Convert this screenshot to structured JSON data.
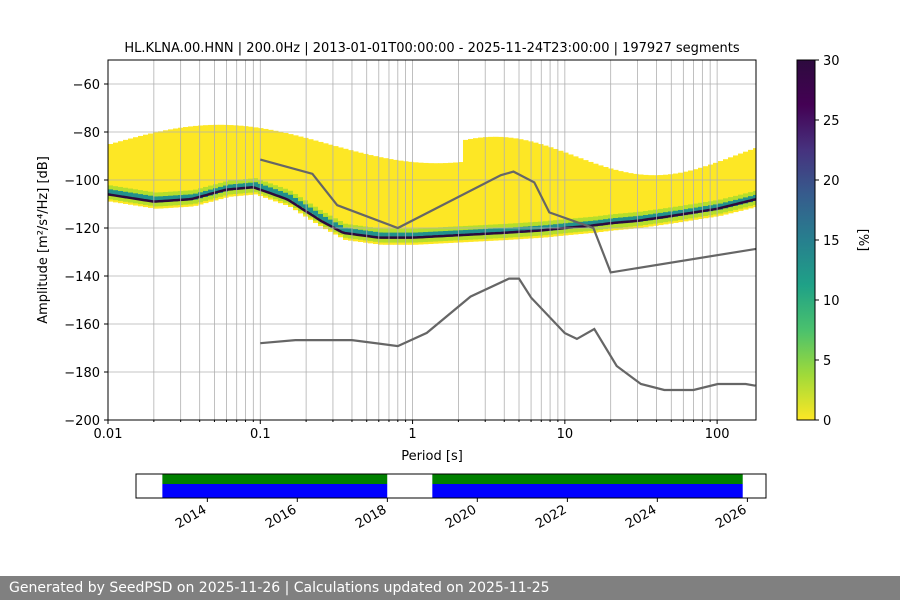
{
  "footer": {
    "text": "Generated by SeedPSD on 2025-11-26 | Calculations updated on 2025-11-25"
  },
  "chart_data": [
    {
      "type": "heatmap",
      "title": "HL.KLNA.00.HNN | 200.0Hz | 2013-01-01T00:00:00 - 2025-11-24T23:00:00 | 197927 segments",
      "xlabel": "Period [s]",
      "ylabel": "Amplitude [m²/s⁴/Hz] [dB]",
      "x_scale": "log",
      "xlim": [
        0.01,
        180
      ],
      "ylim": [
        -200,
        -50
      ],
      "x_ticks": [
        0.01,
        0.1,
        1,
        10,
        100
      ],
      "x_tick_labels": [
        "0.01",
        "0.1",
        "1",
        "10",
        "100"
      ],
      "y_ticks": [
        -200,
        -180,
        -160,
        -140,
        -120,
        -100,
        -80,
        -60
      ],
      "y_tick_labels": [
        "−200",
        "−180",
        "−160",
        "−140",
        "−120",
        "−100",
        "−80",
        "−60"
      ],
      "grid": true,
      "colormap": "viridis_r",
      "colorbar": {
        "label": "[%]",
        "range": [
          0,
          30
        ],
        "ticks": [
          0,
          5,
          10,
          15,
          20,
          25,
          30
        ],
        "tick_labels": [
          "0",
          "5",
          "10",
          "15",
          "20",
          "25",
          "30"
        ]
      },
      "density_mode": {
        "x": [
          0.01,
          0.02,
          0.035,
          0.06,
          0.09,
          0.15,
          0.25,
          0.35,
          0.6,
          1,
          2,
          4,
          7,
          10,
          15,
          20,
          30,
          50,
          100,
          180
        ],
        "y": [
          -106,
          -109,
          -108,
          -104,
          -103,
          -108,
          -117,
          -122,
          -124,
          -124,
          -123,
          -122,
          -121,
          -120,
          -119,
          -118,
          -117,
          -115,
          -112,
          -108
        ]
      },
      "noise_models": [
        {
          "name": "high",
          "x": [
            0.1,
            0.22,
            0.32,
            0.8,
            3.8,
            4.6,
            6.3,
            7.9,
            15.4,
            20,
            180
          ],
          "y": [
            -91.5,
            -97.4,
            -110.5,
            -120,
            -98,
            -96.5,
            -101,
            -113.5,
            -120,
            -138.5,
            -128.7
          ]
        },
        {
          "name": "low",
          "x": [
            0.1,
            0.17,
            0.4,
            0.8,
            1.24,
            2.4,
            4.3,
            5,
            6,
            10,
            12,
            15.6,
            21.9,
            31.6,
            45,
            70,
            101,
            154,
            178
          ],
          "y": [
            -168,
            -166.7,
            -166.7,
            -169.2,
            -163.7,
            -148.6,
            -141.1,
            -141.1,
            -149,
            -163.8,
            -166.2,
            -162.1,
            -177.5,
            -185,
            -187.5,
            -187.5,
            -185,
            -185,
            -185.7
          ]
        }
      ]
    },
    {
      "type": "bar",
      "title": "",
      "x_axis": "date",
      "xlim": [
        "2012-06-01",
        "2026-06-01"
      ],
      "x_tick_labels": [
        "2014",
        "2016",
        "2018",
        "2020",
        "2022",
        "2024",
        "2026"
      ],
      "colors": {
        "top_track": "#008000",
        "bottom_track": "#0000ff"
      },
      "coverage_spans": [
        [
          "2013-01-01",
          "2017-12-31"
        ],
        [
          "2019-01-01",
          "2025-11-24"
        ]
      ]
    }
  ]
}
